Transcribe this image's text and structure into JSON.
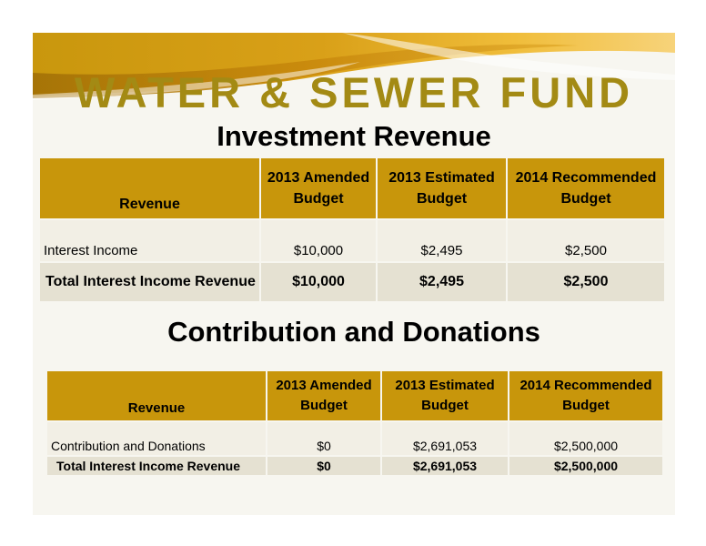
{
  "title": "WATER & SEWER FUND",
  "colors": {
    "title_gold": "#a38a14",
    "header_gold": "#c8960b",
    "row_light": "#f2efe5",
    "row_dark": "#e5e1d2"
  },
  "investment": {
    "heading": "Investment Revenue",
    "headers": [
      "Revenue",
      "2013 Amended Budget",
      "2013 Estimated Budget",
      "2014 Recommended Budget"
    ],
    "rows": [
      [
        "Interest Income",
        "$10,000",
        "$2,495",
        "$2,500"
      ],
      [
        "Total Interest Income Revenue",
        "$10,000",
        "$2,495",
        "$2,500"
      ]
    ]
  },
  "contributions": {
    "heading": "Contribution and Donations",
    "headers": [
      "Revenue",
      "2013 Amended Budget",
      "2013 Estimated Budget",
      "2014 Recommended Budget"
    ],
    "rows": [
      [
        "Contribution and Donations",
        "$0",
        "$2,691,053",
        "$2,500,000"
      ],
      [
        "Total Interest Income Revenue",
        "$0",
        "$2,691,053",
        "$2,500,000"
      ]
    ]
  }
}
